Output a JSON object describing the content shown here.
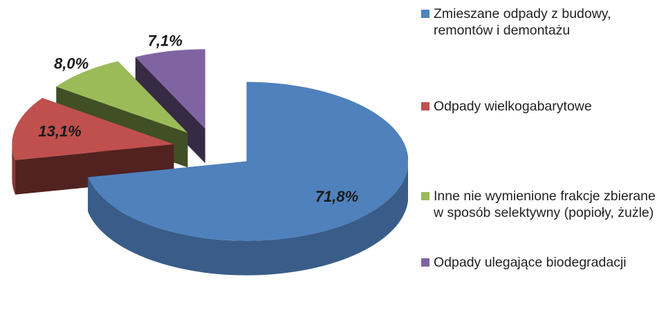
{
  "chart_data": {
    "type": "pie3d",
    "categories": [
      "Zmieszane odpady z budowy, remontów i demontażu",
      "Odpady wielkogabarytowe",
      "Inne nie wymienione frakcje zbierane w sposób selektywny (popioły, żużle)",
      "Odpady ulegające biodegradacji"
    ],
    "values": [
      71.8,
      13.1,
      8.0,
      7.1
    ],
    "value_labels": [
      "71,8%",
      "13,1%",
      "8,0%",
      "7,1%"
    ],
    "colors": [
      "#4f81bd",
      "#c0504d",
      "#9bbb59",
      "#8064a2"
    ],
    "legend": "right"
  }
}
